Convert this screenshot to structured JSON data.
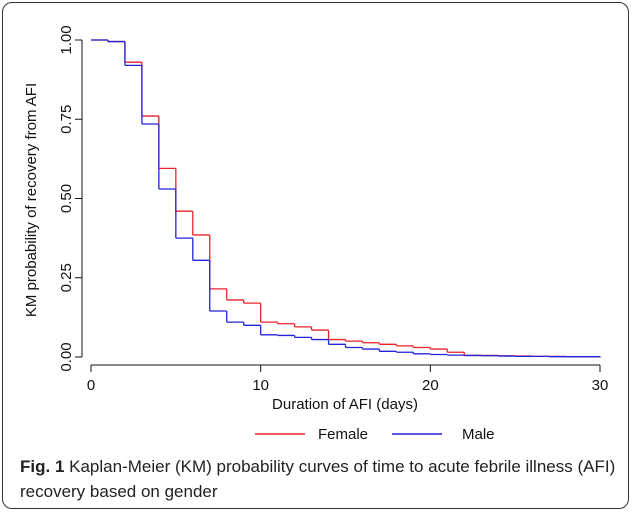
{
  "chart_data": {
    "type": "step",
    "x_label": "Duration of AFI (days)",
    "y_label": "KM probability of recovery from AFI",
    "x": [
      0,
      1,
      2,
      3,
      4,
      5,
      6,
      7,
      8,
      9,
      10,
      11,
      12,
      13,
      14,
      15,
      16,
      17,
      18,
      19,
      20,
      21,
      22,
      23,
      24,
      25,
      26,
      27,
      28,
      29,
      30
    ],
    "series": [
      {
        "name": "Female",
        "color": "#e8232a",
        "values": [
          1.0,
          0.995,
          0.93,
          0.76,
          0.595,
          0.46,
          0.385,
          0.215,
          0.18,
          0.17,
          0.11,
          0.105,
          0.095,
          0.085,
          0.055,
          0.05,
          0.045,
          0.04,
          0.035,
          0.03,
          0.025,
          0.015,
          0.005,
          0.005,
          0.004,
          0.003,
          0.002,
          0.002,
          0.001,
          0.001,
          0.0
        ]
      },
      {
        "name": "Male",
        "color": "#2323d8",
        "values": [
          1.0,
          0.995,
          0.92,
          0.735,
          0.53,
          0.375,
          0.305,
          0.145,
          0.11,
          0.1,
          0.07,
          0.068,
          0.062,
          0.055,
          0.04,
          0.03,
          0.025,
          0.018,
          0.015,
          0.01,
          0.008,
          0.006,
          0.005,
          0.004,
          0.003,
          0.002,
          0.002,
          0.001,
          0.001,
          0.001,
          0.0
        ]
      }
    ],
    "xlim": [
      0,
      30
    ],
    "xticks": [
      0,
      10,
      20,
      30
    ],
    "ylim": [
      0,
      1
    ],
    "yticks": [
      {
        "value": 0,
        "label": "0.00"
      },
      {
        "value": 0.25,
        "label": "0.25"
      },
      {
        "value": 0.5,
        "label": "0.50"
      },
      {
        "value": 0.75,
        "label": "0.75"
      },
      {
        "value": 1,
        "label": "1.00"
      }
    ],
    "legend": "bottom",
    "caption_label": "Fig. 1",
    "caption": "Kaplan-Meier (KM) probability curves of time to acute febrile illness (AFI) recovery based on gender"
  }
}
